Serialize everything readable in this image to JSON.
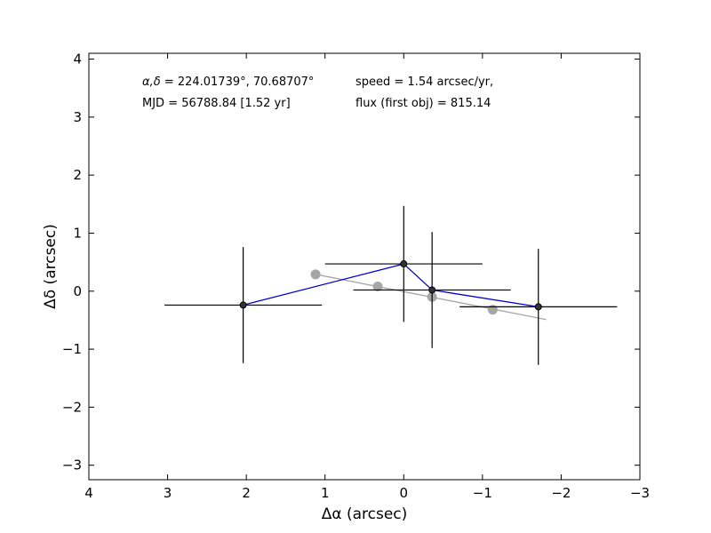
{
  "chart_data": {
    "type": "scatter",
    "xlabel": "Δα (arcsec)",
    "ylabel": "Δδ (arcsec)",
    "xlim": [
      4,
      -3
    ],
    "ylim": [
      -3.25,
      4.1
    ],
    "x_ticks": [
      4,
      3,
      2,
      1,
      0,
      -1,
      -2,
      -3
    ],
    "y_ticks": [
      -3,
      -2,
      -1,
      0,
      1,
      2,
      3,
      4
    ],
    "x_tick_labels": [
      "4",
      "3",
      "2",
      "1",
      "0",
      "−1",
      "−2",
      "−3"
    ],
    "y_tick_labels": [
      "−3",
      "−2",
      "−1",
      "0",
      "1",
      "2",
      "3",
      "4"
    ],
    "grid": false,
    "annotations": {
      "coords_label": "α,δ",
      "coords_text": " = 224.01739°, 70.68707°",
      "mjd": "MJD = 56788.84 [1.52 yr]",
      "speed": "speed = 1.54 arcsec/yr,",
      "flux": "flux (first obj) = 815.14"
    },
    "measurements": {
      "x": [
        2.04,
        0.0,
        -0.36,
        -1.71
      ],
      "y": [
        -0.24,
        0.47,
        0.02,
        -0.27
      ],
      "xerr": [
        1.0,
        1.0,
        1.0,
        1.0
      ],
      "yerr": [
        1.0,
        1.0,
        1.0,
        1.0
      ],
      "color": "#000000"
    },
    "path": {
      "x": [
        2.04,
        0.0,
        -0.36,
        -1.71
      ],
      "y": [
        -0.24,
        0.47,
        0.02,
        -0.27
      ],
      "color": "#0000cc"
    },
    "model_points": {
      "x": [
        1.12,
        0.33,
        -0.36,
        -1.13
      ],
      "y": [
        0.29,
        0.08,
        -0.1,
        -0.32
      ],
      "color": "#a6a6a6"
    },
    "model_line": {
      "x": [
        1.12,
        -1.81
      ],
      "y": [
        0.29,
        -0.49
      ],
      "color": "#a6a6a6"
    }
  }
}
